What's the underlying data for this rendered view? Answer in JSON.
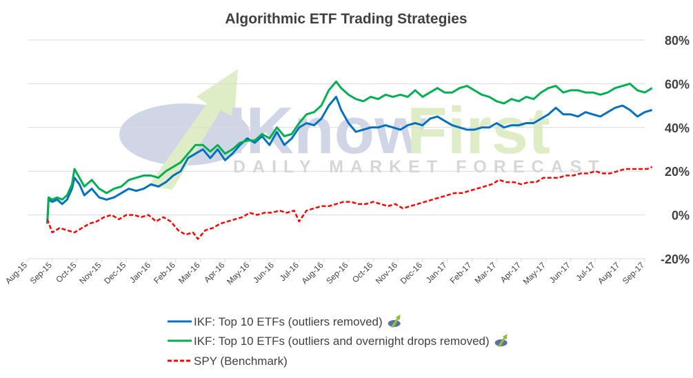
{
  "colors": {
    "ikf_outliers": "#0070C0",
    "ikf_overnight": "#00B050",
    "spy": "#FF0000",
    "grid": "#D9D9D9",
    "text": "#404040",
    "watermark_blue": "#5A6FA8",
    "watermark_green": "#8FBF3A"
  },
  "watermark": {
    "brand_a": "IKnow",
    "brand_b": "First",
    "tagline": "DAILY MARKET FORECAST"
  },
  "legend": {
    "position": "bottom",
    "icons": [
      "iknowfirst-logo-icon",
      "iknowfirst-logo-icon"
    ]
  },
  "chart_data": {
    "type": "line",
    "title": "Algorithmic ETF Trading Strategies",
    "xlabel": "",
    "ylabel": "",
    "y_axis_side": "right",
    "ylim": [
      -20,
      80
    ],
    "y_ticks": [
      "-20%",
      "0%",
      "20%",
      "40%",
      "60%",
      "80%"
    ],
    "y_tick_values": [
      -20,
      0,
      20,
      40,
      60,
      80
    ],
    "grid": true,
    "x_ticks": [
      "Aug-15",
      "Sep-15",
      "Oct-15",
      "Nov-15",
      "Dec-15",
      "Jan-16",
      "Feb-16",
      "Mar-16",
      "Apr-16",
      "May-16",
      "Jun-16",
      "Jul-16",
      "Aug-16",
      "Sep-16",
      "Oct-16",
      "Nov-16",
      "Dec-16",
      "Jan-17",
      "Feb-17",
      "Mar-17",
      "Apr-17",
      "May-17",
      "Jun-17",
      "Jul-17",
      "Aug-17",
      "Sep-17"
    ],
    "x_unit": "months since Aug-15",
    "series": [
      {
        "name": "IKF: Top 10 ETFs (outliers removed)",
        "style": "solid",
        "points": [
          [
            0.8,
            -4
          ],
          [
            0.85,
            7
          ],
          [
            1.0,
            6
          ],
          [
            1.2,
            7
          ],
          [
            1.4,
            5
          ],
          [
            1.6,
            7
          ],
          [
            1.8,
            12
          ],
          [
            1.9,
            17
          ],
          [
            2.1,
            14
          ],
          [
            2.3,
            9
          ],
          [
            2.6,
            12
          ],
          [
            2.9,
            8
          ],
          [
            3.2,
            7
          ],
          [
            3.5,
            8
          ],
          [
            3.8,
            10
          ],
          [
            4.1,
            12
          ],
          [
            4.4,
            11
          ],
          [
            4.7,
            12
          ],
          [
            5.0,
            14
          ],
          [
            5.3,
            13
          ],
          [
            5.6,
            15
          ],
          [
            5.9,
            18
          ],
          [
            6.2,
            20
          ],
          [
            6.5,
            26
          ],
          [
            6.8,
            28
          ],
          [
            7.1,
            30
          ],
          [
            7.4,
            26
          ],
          [
            7.7,
            30
          ],
          [
            8.0,
            25
          ],
          [
            8.3,
            28
          ],
          [
            8.6,
            32
          ],
          [
            8.9,
            35
          ],
          [
            9.2,
            33
          ],
          [
            9.5,
            36
          ],
          [
            9.8,
            32
          ],
          [
            10.1,
            38
          ],
          [
            10.4,
            32
          ],
          [
            10.7,
            35
          ],
          [
            11.0,
            40
          ],
          [
            11.3,
            42
          ],
          [
            11.6,
            41
          ],
          [
            11.9,
            44
          ],
          [
            12.2,
            50
          ],
          [
            12.5,
            54
          ],
          [
            12.7,
            48
          ],
          [
            13.0,
            42
          ],
          [
            13.3,
            38
          ],
          [
            13.6,
            39
          ],
          [
            13.9,
            40
          ],
          [
            14.2,
            40
          ],
          [
            14.5,
            41
          ],
          [
            14.8,
            40
          ],
          [
            15.1,
            39
          ],
          [
            15.4,
            41
          ],
          [
            15.7,
            42
          ],
          [
            16.0,
            41
          ],
          [
            16.3,
            44
          ],
          [
            16.6,
            45
          ],
          [
            16.9,
            43
          ],
          [
            17.2,
            41
          ],
          [
            17.5,
            40
          ],
          [
            17.8,
            39
          ],
          [
            18.1,
            39
          ],
          [
            18.4,
            40
          ],
          [
            18.7,
            40
          ],
          [
            19.0,
            42
          ],
          [
            19.3,
            40
          ],
          [
            19.6,
            41
          ],
          [
            19.9,
            41
          ],
          [
            20.2,
            42
          ],
          [
            20.5,
            42
          ],
          [
            20.8,
            44
          ],
          [
            21.1,
            46
          ],
          [
            21.4,
            49
          ],
          [
            21.7,
            46
          ],
          [
            22.0,
            46
          ],
          [
            22.3,
            45
          ],
          [
            22.6,
            47
          ],
          [
            22.9,
            46
          ],
          [
            23.2,
            45
          ],
          [
            23.5,
            47
          ],
          [
            23.8,
            49
          ],
          [
            24.1,
            50
          ],
          [
            24.4,
            48
          ],
          [
            24.7,
            45
          ],
          [
            25.0,
            47
          ],
          [
            25.3,
            48
          ]
        ]
      },
      {
        "name": "IKF: Top 10 ETFs (outliers and overnight drops removed)",
        "style": "solid",
        "points": [
          [
            0.8,
            -4
          ],
          [
            0.85,
            8
          ],
          [
            1.0,
            7
          ],
          [
            1.2,
            8
          ],
          [
            1.4,
            7
          ],
          [
            1.6,
            9
          ],
          [
            1.8,
            14
          ],
          [
            1.9,
            21
          ],
          [
            2.1,
            17
          ],
          [
            2.3,
            13
          ],
          [
            2.6,
            16
          ],
          [
            2.9,
            12
          ],
          [
            3.2,
            10
          ],
          [
            3.5,
            12
          ],
          [
            3.8,
            13
          ],
          [
            4.1,
            16
          ],
          [
            4.4,
            17
          ],
          [
            4.7,
            18
          ],
          [
            5.0,
            18
          ],
          [
            5.3,
            17
          ],
          [
            5.6,
            20
          ],
          [
            5.9,
            22
          ],
          [
            6.2,
            24
          ],
          [
            6.5,
            28
          ],
          [
            6.8,
            32
          ],
          [
            7.1,
            32
          ],
          [
            7.4,
            29
          ],
          [
            7.7,
            32
          ],
          [
            8.0,
            28
          ],
          [
            8.3,
            30
          ],
          [
            8.6,
            33
          ],
          [
            8.9,
            34
          ],
          [
            9.2,
            34
          ],
          [
            9.5,
            37
          ],
          [
            9.8,
            35
          ],
          [
            10.1,
            40
          ],
          [
            10.4,
            36
          ],
          [
            10.7,
            37
          ],
          [
            11.0,
            42
          ],
          [
            11.3,
            46
          ],
          [
            11.6,
            47
          ],
          [
            11.9,
            50
          ],
          [
            12.2,
            57
          ],
          [
            12.5,
            61
          ],
          [
            12.7,
            58
          ],
          [
            13.0,
            55
          ],
          [
            13.3,
            53
          ],
          [
            13.6,
            52
          ],
          [
            13.9,
            54
          ],
          [
            14.2,
            53
          ],
          [
            14.5,
            55
          ],
          [
            14.8,
            54
          ],
          [
            15.1,
            55
          ],
          [
            15.4,
            54
          ],
          [
            15.7,
            57
          ],
          [
            16.0,
            54
          ],
          [
            16.3,
            56
          ],
          [
            16.6,
            58
          ],
          [
            16.9,
            56
          ],
          [
            17.2,
            56
          ],
          [
            17.5,
            58
          ],
          [
            17.8,
            59
          ],
          [
            18.1,
            57
          ],
          [
            18.4,
            55
          ],
          [
            18.7,
            54
          ],
          [
            19.0,
            52
          ],
          [
            19.3,
            51
          ],
          [
            19.6,
            53
          ],
          [
            19.9,
            52
          ],
          [
            20.2,
            54
          ],
          [
            20.5,
            53
          ],
          [
            20.8,
            56
          ],
          [
            21.1,
            58
          ],
          [
            21.4,
            59
          ],
          [
            21.7,
            56
          ],
          [
            22.0,
            57
          ],
          [
            22.3,
            57
          ],
          [
            22.6,
            56
          ],
          [
            22.9,
            56
          ],
          [
            23.2,
            55
          ],
          [
            23.5,
            56
          ],
          [
            23.8,
            58
          ],
          [
            24.1,
            59
          ],
          [
            24.4,
            60
          ],
          [
            24.7,
            57
          ],
          [
            25.0,
            56
          ],
          [
            25.3,
            58
          ]
        ]
      },
      {
        "name": "SPY (Benchmark)",
        "style": "dashed",
        "points": [
          [
            0.8,
            -2
          ],
          [
            1.0,
            -8
          ],
          [
            1.3,
            -6
          ],
          [
            1.6,
            -7
          ],
          [
            1.9,
            -8
          ],
          [
            2.2,
            -6
          ],
          [
            2.5,
            -4
          ],
          [
            2.8,
            -3
          ],
          [
            3.1,
            -1
          ],
          [
            3.4,
            0
          ],
          [
            3.7,
            -2
          ],
          [
            4.0,
            0
          ],
          [
            4.3,
            0
          ],
          [
            4.6,
            -1
          ],
          [
            4.9,
            0
          ],
          [
            5.2,
            -3
          ],
          [
            5.5,
            -1
          ],
          [
            5.8,
            -3
          ],
          [
            6.1,
            -7
          ],
          [
            6.4,
            -9
          ],
          [
            6.7,
            -8
          ],
          [
            6.9,
            -11
          ],
          [
            7.2,
            -7
          ],
          [
            7.5,
            -6
          ],
          [
            7.8,
            -4
          ],
          [
            8.1,
            -3
          ],
          [
            8.4,
            -2
          ],
          [
            8.7,
            -1
          ],
          [
            9.0,
            1
          ],
          [
            9.3,
            0
          ],
          [
            9.6,
            1
          ],
          [
            9.9,
            1
          ],
          [
            10.2,
            2
          ],
          [
            10.5,
            1
          ],
          [
            10.8,
            2
          ],
          [
            11.0,
            -3
          ],
          [
            11.3,
            2
          ],
          [
            11.6,
            3
          ],
          [
            11.9,
            4
          ],
          [
            12.2,
            4
          ],
          [
            12.5,
            5
          ],
          [
            12.8,
            6
          ],
          [
            13.1,
            6
          ],
          [
            13.4,
            5
          ],
          [
            13.7,
            5
          ],
          [
            14.0,
            6
          ],
          [
            14.3,
            5
          ],
          [
            14.6,
            4
          ],
          [
            14.9,
            5
          ],
          [
            15.2,
            3
          ],
          [
            15.5,
            4
          ],
          [
            15.8,
            5
          ],
          [
            16.1,
            6
          ],
          [
            16.4,
            7
          ],
          [
            16.7,
            8
          ],
          [
            17.0,
            9
          ],
          [
            17.3,
            10
          ],
          [
            17.6,
            10
          ],
          [
            17.9,
            11
          ],
          [
            18.2,
            12
          ],
          [
            18.5,
            13
          ],
          [
            18.8,
            14
          ],
          [
            19.1,
            16
          ],
          [
            19.4,
            15
          ],
          [
            19.7,
            15
          ],
          [
            20.0,
            14
          ],
          [
            20.3,
            15
          ],
          [
            20.6,
            15
          ],
          [
            20.9,
            17
          ],
          [
            21.2,
            17
          ],
          [
            21.5,
            17
          ],
          [
            21.8,
            18
          ],
          [
            22.1,
            18
          ],
          [
            22.4,
            19
          ],
          [
            22.7,
            19
          ],
          [
            23.0,
            20
          ],
          [
            23.3,
            19
          ],
          [
            23.6,
            19
          ],
          [
            23.9,
            20
          ],
          [
            24.2,
            21
          ],
          [
            24.5,
            21
          ],
          [
            24.8,
            21
          ],
          [
            25.1,
            21
          ],
          [
            25.3,
            22
          ]
        ]
      }
    ]
  }
}
